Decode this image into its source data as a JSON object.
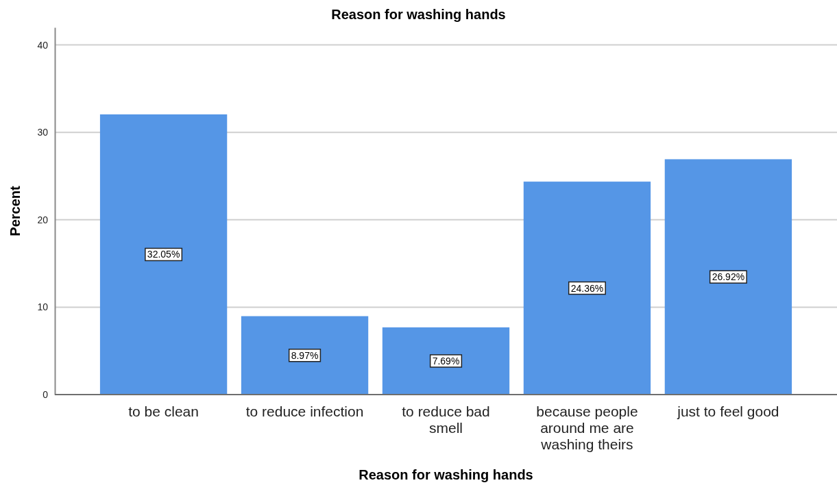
{
  "chart_data": {
    "type": "bar",
    "title": "Reason for washing hands",
    "xlabel": "Reason for washing hands",
    "ylabel": "Percent",
    "categories": [
      "to be clean",
      "to reduce infection",
      "to reduce bad smell",
      "because people around me are washing theirs",
      "just to feel good"
    ],
    "values": [
      32.05,
      8.97,
      7.69,
      24.36,
      26.92
    ],
    "value_labels": [
      "32.05%",
      "8.97%",
      "7.69%",
      "24.36%",
      "26.92%"
    ],
    "color": "#5596e6",
    "ylim": [
      0,
      42
    ],
    "yticks": [
      0,
      10,
      20,
      30,
      40
    ],
    "grid": "y"
  }
}
